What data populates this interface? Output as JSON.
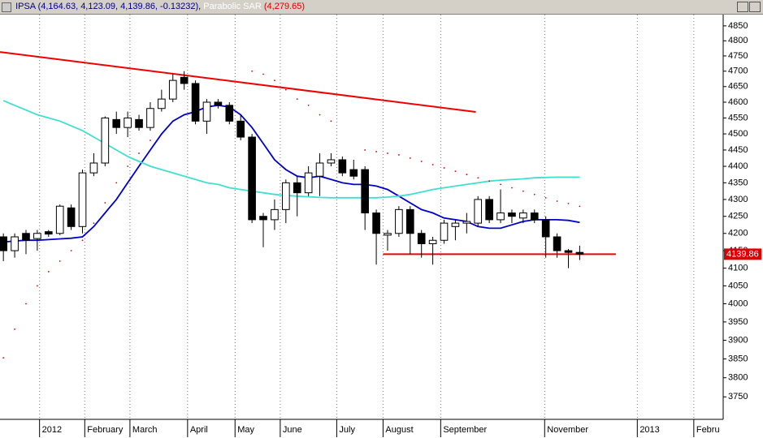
{
  "chart_data": {
    "type": "candlestick",
    "symbol": "IPSA",
    "symbol_values": "(4,164.63, 4,123.09, 4,139.86, -0.13232)",
    "indicator": "Parabolic SAR",
    "indicator_value": "(4,279.65)",
    "log_scale": true,
    "grid": "x",
    "ylim": [
      3692,
      4888
    ],
    "yticks": [
      4850,
      4800,
      4750,
      4700,
      4650,
      4600,
      4550,
      4500,
      4450,
      4400,
      4350,
      4300,
      4250,
      4200,
      4150,
      4100,
      4050,
      4000,
      3950,
      3900,
      3850,
      3800,
      3750
    ],
    "xlim": [
      -0.3,
      63.7
    ],
    "xticks": [
      {
        "value": 3.2,
        "label": "2012"
      },
      {
        "value": 7.2,
        "label": "February"
      },
      {
        "value": 11.2,
        "label": "March"
      },
      {
        "value": 16.3,
        "label": "April"
      },
      {
        "value": 20.5,
        "label": "May"
      },
      {
        "value": 24.5,
        "label": "June"
      },
      {
        "value": 29.5,
        "label": "July"
      },
      {
        "value": 33.6,
        "label": "August"
      },
      {
        "value": 38.7,
        "label": "September"
      },
      {
        "value": 47.9,
        "label": "November"
      },
      {
        "value": 56.1,
        "label": "2013"
      },
      {
        "value": 61.1,
        "label": "Febru"
      }
    ],
    "up_color": "#ffffff",
    "down_color": "#000000",
    "open": [
      4190,
      4150,
      4200,
      4185,
      4205,
      4200,
      4275,
      4220,
      4380,
      4410,
      4545,
      4520,
      4545,
      4520,
      4580,
      4610,
      4680,
      4660,
      4540,
      4600,
      4590,
      4540,
      4490,
      4250,
      4240,
      4270,
      4350,
      4320,
      4370,
      4410,
      4420,
      4390,
      4390,
      4260,
      4195,
      4200,
      4270,
      4200,
      4170,
      4180,
      4220,
      4230,
      4230,
      4300,
      4240,
      4260,
      4245,
      4260,
      4240,
      4190,
      4150,
      4145
    ],
    "high": [
      4200,
      4200,
      4210,
      4210,
      4210,
      4285,
      4285,
      4390,
      4440,
      4555,
      4570,
      4570,
      4560,
      4600,
      4640,
      4690,
      4700,
      4670,
      4610,
      4610,
      4600,
      4560,
      4500,
      4260,
      4300,
      4360,
      4370,
      4400,
      4440,
      4440,
      4430,
      4420,
      4400,
      4270,
      4210,
      4280,
      4280,
      4210,
      4190,
      4240,
      4240,
      4260,
      4310,
      4310,
      4330,
      4270,
      4270,
      4270,
      4250,
      4200,
      4155,
      4164.63
    ],
    "low": [
      4120,
      4130,
      4140,
      4150,
      4190,
      4195,
      4210,
      4200,
      4370,
      4400,
      4500,
      4490,
      4510,
      4510,
      4570,
      4600,
      4640,
      4530,
      4500,
      4580,
      4530,
      4480,
      4230,
      4160,
      4210,
      4230,
      4250,
      4310,
      4310,
      4400,
      4370,
      4360,
      4210,
      4110,
      4150,
      4190,
      4140,
      4130,
      4110,
      4170,
      4180,
      4200,
      4220,
      4230,
      4230,
      4230,
      4230,
      4230,
      4130,
      4130,
      4100,
      4123.09
    ],
    "close": [
      4150,
      4190,
      4180,
      4200,
      4198,
      4280,
      4220,
      4380,
      4410,
      4550,
      4520,
      4550,
      4520,
      4580,
      4610,
      4670,
      4660,
      4540,
      4600,
      4590,
      4540,
      4490,
      4240,
      4240,
      4270,
      4350,
      4320,
      4380,
      4410,
      4420,
      4380,
      4370,
      4260,
      4200,
      4200,
      4270,
      4200,
      4170,
      4180,
      4230,
      4230,
      4235,
      4300,
      4240,
      4260,
      4250,
      4260,
      4240,
      4190,
      4150,
      4145,
      4139.86
    ],
    "series": [
      {
        "color": "#0000cc",
        "values": [
          4175,
          4178,
          4180,
          4180,
          4182,
          4184,
          4186,
          4190,
          4220,
          4260,
          4300,
          4350,
          4400,
          4450,
          4500,
          4540,
          4560,
          4570,
          4585,
          4590,
          4585,
          4560,
          4520,
          4470,
          4420,
          4390,
          4370,
          4365,
          4370,
          4360,
          4350,
          4345,
          4345,
          4340,
          4330,
          4310,
          4290,
          4270,
          4260,
          4245,
          4240,
          4235,
          4220,
          4215,
          4215,
          4225,
          4235,
          4240,
          4240,
          4240,
          4238,
          4232
        ]
      },
      {
        "color": "#40e0d0",
        "values": [
          4605,
          4590,
          4575,
          4560,
          4550,
          4540,
          4525,
          4510,
          4490,
          4470,
          4450,
          4430,
          4415,
          4400,
          4390,
          4380,
          4370,
          4360,
          4350,
          4345,
          4335,
          4330,
          4325,
          4320,
          4315,
          4312,
          4310,
          4308,
          4306,
          4305,
          4305,
          4305,
          4305,
          4305,
          4307,
          4310,
          4315,
          4322,
          4330,
          4335,
          4340,
          4345,
          4350,
          4355,
          4358,
          4360,
          4362,
          4365,
          4366,
          4367,
          4367,
          4367
        ]
      }
    ],
    "sar": {
      "color": "#dd0000",
      "values": [
        3853,
        3930,
        4000,
        4050,
        4090,
        4120,
        4150,
        4180,
        4230,
        4290,
        4350,
        4400,
        4440,
        4480,
        null,
        null,
        null,
        null,
        null,
        null,
        null,
        null,
        4700,
        4690,
        4670,
        4640,
        4610,
        4590,
        4560,
        4540,
        null,
        null,
        4450,
        4445,
        4440,
        4435,
        4425,
        4415,
        4405,
        4395,
        4385,
        4375,
        4365,
        4355,
        4345,
        4335,
        4325,
        4315,
        4305,
        4295,
        4288,
        4279.65
      ]
    },
    "trendlines": [
      {
        "color": "#ee0000",
        "x": [
          -0.3,
          41.8
        ],
        "y": [
          4763,
          4569
        ]
      },
      {
        "color": "#ee0000",
        "x": [
          33.6,
          54.2
        ],
        "y": [
          4140,
          4140
        ]
      }
    ],
    "last_price_label": "4139.86",
    "last_price": 4139.86
  }
}
